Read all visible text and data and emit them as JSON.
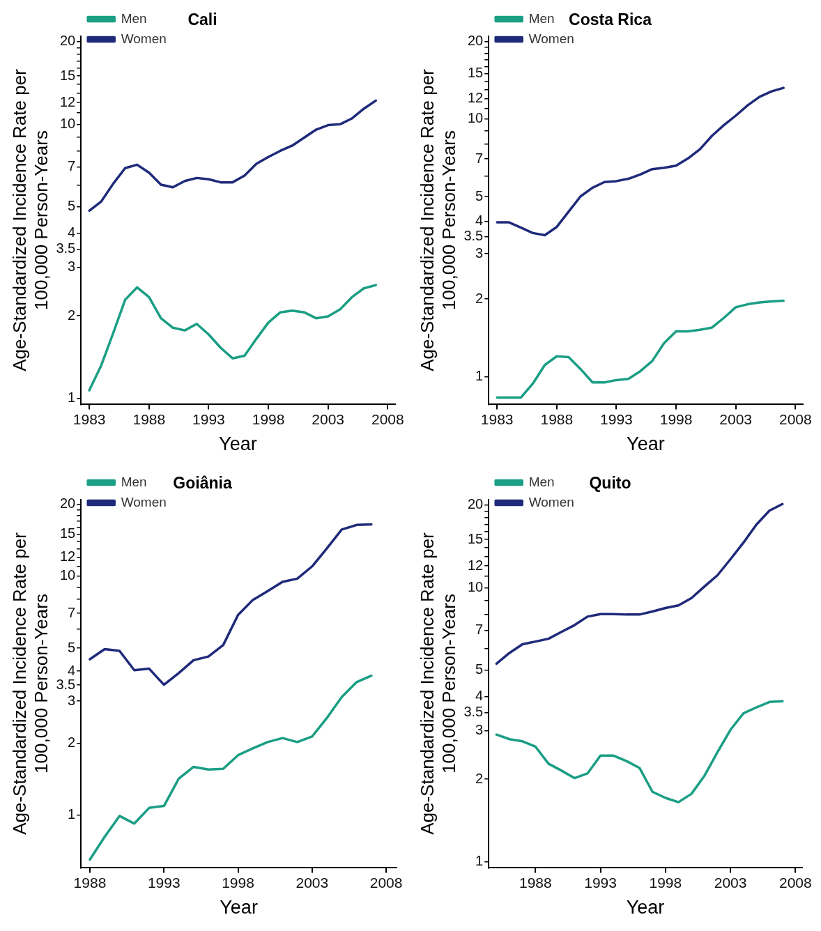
{
  "chart_data": [
    {
      "type": "line",
      "title": "Cali",
      "xlabel": "Year",
      "ylabel": "Age-Standardized Incidence Rate per 100,000 Person-Years",
      "log": "y",
      "grid": false,
      "legend": "top left",
      "marker": "none",
      "x": [
        1983,
        1984,
        1985,
        1986,
        1987,
        1988,
        1989,
        1990,
        1991,
        1992,
        1993,
        1994,
        1995,
        1996,
        1997,
        1998,
        1999,
        2000,
        2001,
        2002,
        2003,
        2004,
        2005,
        2006,
        2007
      ],
      "xlim": [
        1982.3,
        2008.6
      ],
      "xticks": [
        1983,
        1988,
        1993,
        1998,
        2003,
        2008
      ],
      "ylim": [
        0.95,
        21
      ],
      "yticks": [
        1,
        2,
        3,
        3.5,
        4,
        5,
        7,
        10,
        12,
        15,
        20,
        {
          "value": 6,
          "label": null
        },
        {
          "value": 8,
          "label": null
        },
        {
          "value": 9,
          "label": null
        },
        {
          "value": 11,
          "label": null
        },
        {
          "value": 13,
          "label": null
        },
        {
          "value": 14,
          "label": null
        },
        {
          "value": 16,
          "label": null
        },
        {
          "value": 17,
          "label": null
        },
        {
          "value": 18,
          "label": null
        },
        {
          "value": 19,
          "label": null
        }
      ],
      "series": [
        {
          "name": "Men",
          "color": "#1a9e84",
          "values": [
            1.07,
            1.32,
            1.73,
            2.29,
            2.54,
            2.34,
            1.96,
            1.81,
            1.77,
            1.87,
            1.71,
            1.53,
            1.4,
            1.43,
            1.65,
            1.89,
            2.06,
            2.09,
            2.06,
            1.96,
            1.99,
            2.11,
            2.34,
            2.52,
            2.59
          ]
        },
        {
          "name": "Women",
          "color": "#1f2a7a",
          "values": [
            4.84,
            5.23,
            6.07,
            6.92,
            7.12,
            6.66,
            6.02,
            5.89,
            6.21,
            6.37,
            6.3,
            6.14,
            6.14,
            6.5,
            7.18,
            7.6,
            8.0,
            8.36,
            8.94,
            9.56,
            9.93,
            10.0,
            10.5,
            11.4,
            12.2
          ]
        }
      ]
    },
    {
      "type": "line",
      "title": "Costa Rica",
      "xlabel": "Year",
      "ylabel": "Age-Standardized Incidence Rate per 100,000 Person-Years",
      "log": "y",
      "grid": false,
      "legend": "top left",
      "marker": "none",
      "x": [
        1983,
        1984,
        1985,
        1986,
        1987,
        1988,
        1989,
        1990,
        1991,
        1992,
        1993,
        1994,
        1995,
        1996,
        1997,
        1998,
        1999,
        2000,
        2001,
        2002,
        2003,
        2004,
        2005,
        2006,
        2007
      ],
      "xlim": [
        1982.3,
        2008.6
      ],
      "xticks": [
        1983,
        1988,
        1993,
        1998,
        2003,
        2008
      ],
      "ylim": [
        0.78,
        21
      ],
      "yticks": [
        1,
        2,
        3,
        3.5,
        4,
        5,
        7,
        10,
        12,
        15,
        20,
        {
          "value": 6,
          "label": null
        },
        {
          "value": 8,
          "label": null
        },
        {
          "value": 9,
          "label": null
        },
        {
          "value": 11,
          "label": null
        },
        {
          "value": 13,
          "label": null
        },
        {
          "value": 14,
          "label": null
        },
        {
          "value": 16,
          "label": null
        },
        {
          "value": 17,
          "label": null
        },
        {
          "value": 18,
          "label": null
        },
        {
          "value": 19,
          "label": null
        }
      ],
      "series": [
        {
          "name": "Men",
          "color": "#1a9e84",
          "values": [
            0.83,
            0.83,
            0.83,
            0.94,
            1.11,
            1.2,
            1.19,
            1.07,
            0.95,
            0.95,
            0.97,
            0.98,
            1.05,
            1.15,
            1.35,
            1.5,
            1.5,
            1.52,
            1.55,
            1.69,
            1.86,
            1.91,
            1.94,
            1.96,
            1.97
          ]
        },
        {
          "name": "Women",
          "color": "#1f2a7a",
          "values": [
            3.97,
            3.97,
            3.79,
            3.61,
            3.54,
            3.81,
            4.37,
            5.01,
            5.41,
            5.69,
            5.74,
            5.86,
            6.09,
            6.39,
            6.47,
            6.59,
            7.03,
            7.63,
            8.6,
            9.46,
            10.3,
            11.3,
            12.2,
            12.8,
            13.2
          ]
        }
      ]
    },
    {
      "type": "line",
      "title": "Goiânia",
      "xlabel": "Year",
      "ylabel": "Age-Standardized Incidence Rate per 100,000 Person-Years",
      "log": "y",
      "grid": false,
      "legend": "top left",
      "marker": "none",
      "x": [
        1988,
        1989,
        1990,
        1991,
        1992,
        1993,
        1994,
        1995,
        1996,
        1997,
        1998,
        1999,
        2000,
        2001,
        2002,
        2003,
        2004,
        2005,
        2006,
        2007
      ],
      "xlim": [
        1987.4,
        2008.7
      ],
      "xticks": [
        1988,
        1993,
        1998,
        2003,
        2008
      ],
      "ylim": [
        0.61,
        21
      ],
      "yticks": [
        1,
        2,
        3,
        3.5,
        4,
        5,
        7,
        10,
        12,
        15,
        20,
        {
          "value": 6,
          "label": null
        },
        {
          "value": 8,
          "label": null
        },
        {
          "value": 9,
          "label": null
        },
        {
          "value": 11,
          "label": null
        },
        {
          "value": 13,
          "label": null
        },
        {
          "value": 14,
          "label": null
        },
        {
          "value": 16,
          "label": null
        },
        {
          "value": 17,
          "label": null
        },
        {
          "value": 18,
          "label": null
        },
        {
          "value": 19,
          "label": null
        }
      ],
      "series": [
        {
          "name": "Men",
          "color": "#1a9e84",
          "values": [
            0.65,
            0.81,
            0.99,
            0.92,
            1.07,
            1.09,
            1.42,
            1.59,
            1.55,
            1.56,
            1.78,
            1.9,
            2.02,
            2.1,
            2.02,
            2.13,
            2.55,
            3.12,
            3.6,
            3.83
          ]
        },
        {
          "name": "Women",
          "color": "#1f2a7a",
          "values": [
            4.49,
            4.95,
            4.87,
            4.04,
            4.1,
            3.51,
            3.93,
            4.45,
            4.61,
            5.15,
            6.88,
            7.96,
            8.66,
            9.47,
            9.77,
            11.0,
            13.1,
            15.7,
            16.4,
            16.5
          ]
        }
      ]
    },
    {
      "type": "line",
      "title": "Quito",
      "xlabel": "Year",
      "ylabel": "Age-Standardized Incidence Rate per 100,000 Person-Years",
      "log": "y",
      "grid": false,
      "legend": "top left",
      "marker": "none",
      "x": [
        1985,
        1986,
        1987,
        1988,
        1989,
        1990,
        1991,
        1992,
        1993,
        1994,
        1995,
        1996,
        1997,
        1998,
        1999,
        2000,
        2001,
        2002,
        2003,
        2004,
        2005,
        2006,
        2007
      ],
      "xlim": [
        1984.4,
        2008.5
      ],
      "xticks": [
        1988,
        1993,
        1998,
        2003,
        2008
      ],
      "ylim": [
        0.95,
        21
      ],
      "yticks": [
        1,
        2,
        3,
        3.5,
        4,
        5,
        7,
        10,
        12,
        15,
        20,
        {
          "value": 6,
          "label": null
        },
        {
          "value": 8,
          "label": null
        },
        {
          "value": 9,
          "label": null
        },
        {
          "value": 11,
          "label": null
        },
        {
          "value": 13,
          "label": null
        },
        {
          "value": 14,
          "label": null
        },
        {
          "value": 16,
          "label": null
        },
        {
          "value": 17,
          "label": null
        },
        {
          "value": 18,
          "label": null
        },
        {
          "value": 19,
          "label": null
        }
      ],
      "series": [
        {
          "name": "Men",
          "color": "#1a9e84",
          "values": [
            2.91,
            2.8,
            2.75,
            2.63,
            2.28,
            2.15,
            2.02,
            2.1,
            2.44,
            2.44,
            2.33,
            2.2,
            1.8,
            1.71,
            1.65,
            1.77,
            2.06,
            2.51,
            3.03,
            3.48,
            3.66,
            3.83,
            3.85
          ]
        },
        {
          "name": "Women",
          "color": "#1f2a7a",
          "values": [
            5.28,
            5.78,
            6.22,
            6.36,
            6.51,
            6.9,
            7.3,
            7.84,
            8.01,
            8.01,
            7.98,
            7.98,
            8.19,
            8.43,
            8.62,
            9.16,
            10.1,
            11.1,
            12.7,
            14.6,
            17.0,
            19.1,
            20.2
          ]
        }
      ]
    }
  ]
}
